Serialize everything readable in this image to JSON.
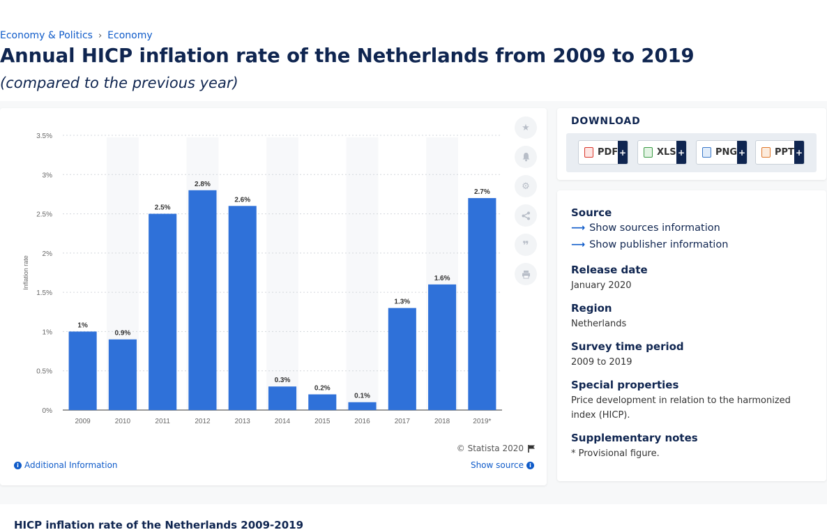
{
  "breadcrumb": {
    "items": [
      "Economy & Politics",
      "Economy"
    ],
    "separator": "›"
  },
  "header": {
    "title": "Annual HICP inflation rate of the Netherlands from 2009 to 2019",
    "subtitle": "(compared to the previous year)"
  },
  "chart_card": {
    "copyright": "© Statista 2020",
    "additional_info": "Additional Information",
    "show_source": "Show source",
    "tool_icons": [
      "star-icon",
      "bell-icon",
      "gear-icon",
      "share-icon",
      "quote-icon",
      "print-icon"
    ]
  },
  "chart_data": {
    "type": "bar",
    "categories": [
      "2009",
      "2010",
      "2011",
      "2012",
      "2013",
      "2014",
      "2015",
      "2016",
      "2017",
      "2018",
      "2019*"
    ],
    "values": [
      1.0,
      0.9,
      2.5,
      2.8,
      2.6,
      0.3,
      0.2,
      0.1,
      1.3,
      1.6,
      2.7
    ],
    "data_labels": [
      "1%",
      "0.9%",
      "2.5%",
      "2.8%",
      "2.6%",
      "0.3%",
      "0.2%",
      "0.1%",
      "1.3%",
      "1.6%",
      "2.7%"
    ],
    "ylabel": "Inflation rate",
    "xlabel": "",
    "ylim": [
      0,
      3.5
    ],
    "yticks": [
      "0%",
      "0.5%",
      "1%",
      "1.5%",
      "2%",
      "2.5%",
      "3%",
      "3.5%"
    ],
    "grid": true,
    "bar_color": "#2f71d9"
  },
  "download": {
    "title": "DOWNLOAD",
    "buttons": [
      {
        "label": "PDF",
        "icon": "pdf-icon",
        "color": "#d9362b"
      },
      {
        "label": "XLS",
        "icon": "xls-icon",
        "color": "#3a9a44"
      },
      {
        "label": "PNG",
        "icon": "png-icon",
        "color": "#3a78c8"
      },
      {
        "label": "PPT",
        "icon": "ppt-icon",
        "color": "#e0772a"
      }
    ],
    "plus": "+"
  },
  "info": {
    "source_label": "Source",
    "show_sources": "Show sources information",
    "show_publisher": "Show publisher information",
    "release_label": "Release date",
    "release_value": "January 2020",
    "region_label": "Region",
    "region_value": "Netherlands",
    "survey_label": "Survey time period",
    "survey_value": "2009 to 2019",
    "special_label": "Special properties",
    "special_value": "Price development in relation to the harmonized index (HICP).",
    "notes_label": "Supplementary notes",
    "notes_value": "* Provisional figure."
  },
  "bottom": {
    "title": "HICP inflation rate of the Netherlands 2009-2019"
  },
  "colors": {
    "navy": "#0f2550",
    "link": "#0f5bc9",
    "bar": "#2f71d9"
  }
}
